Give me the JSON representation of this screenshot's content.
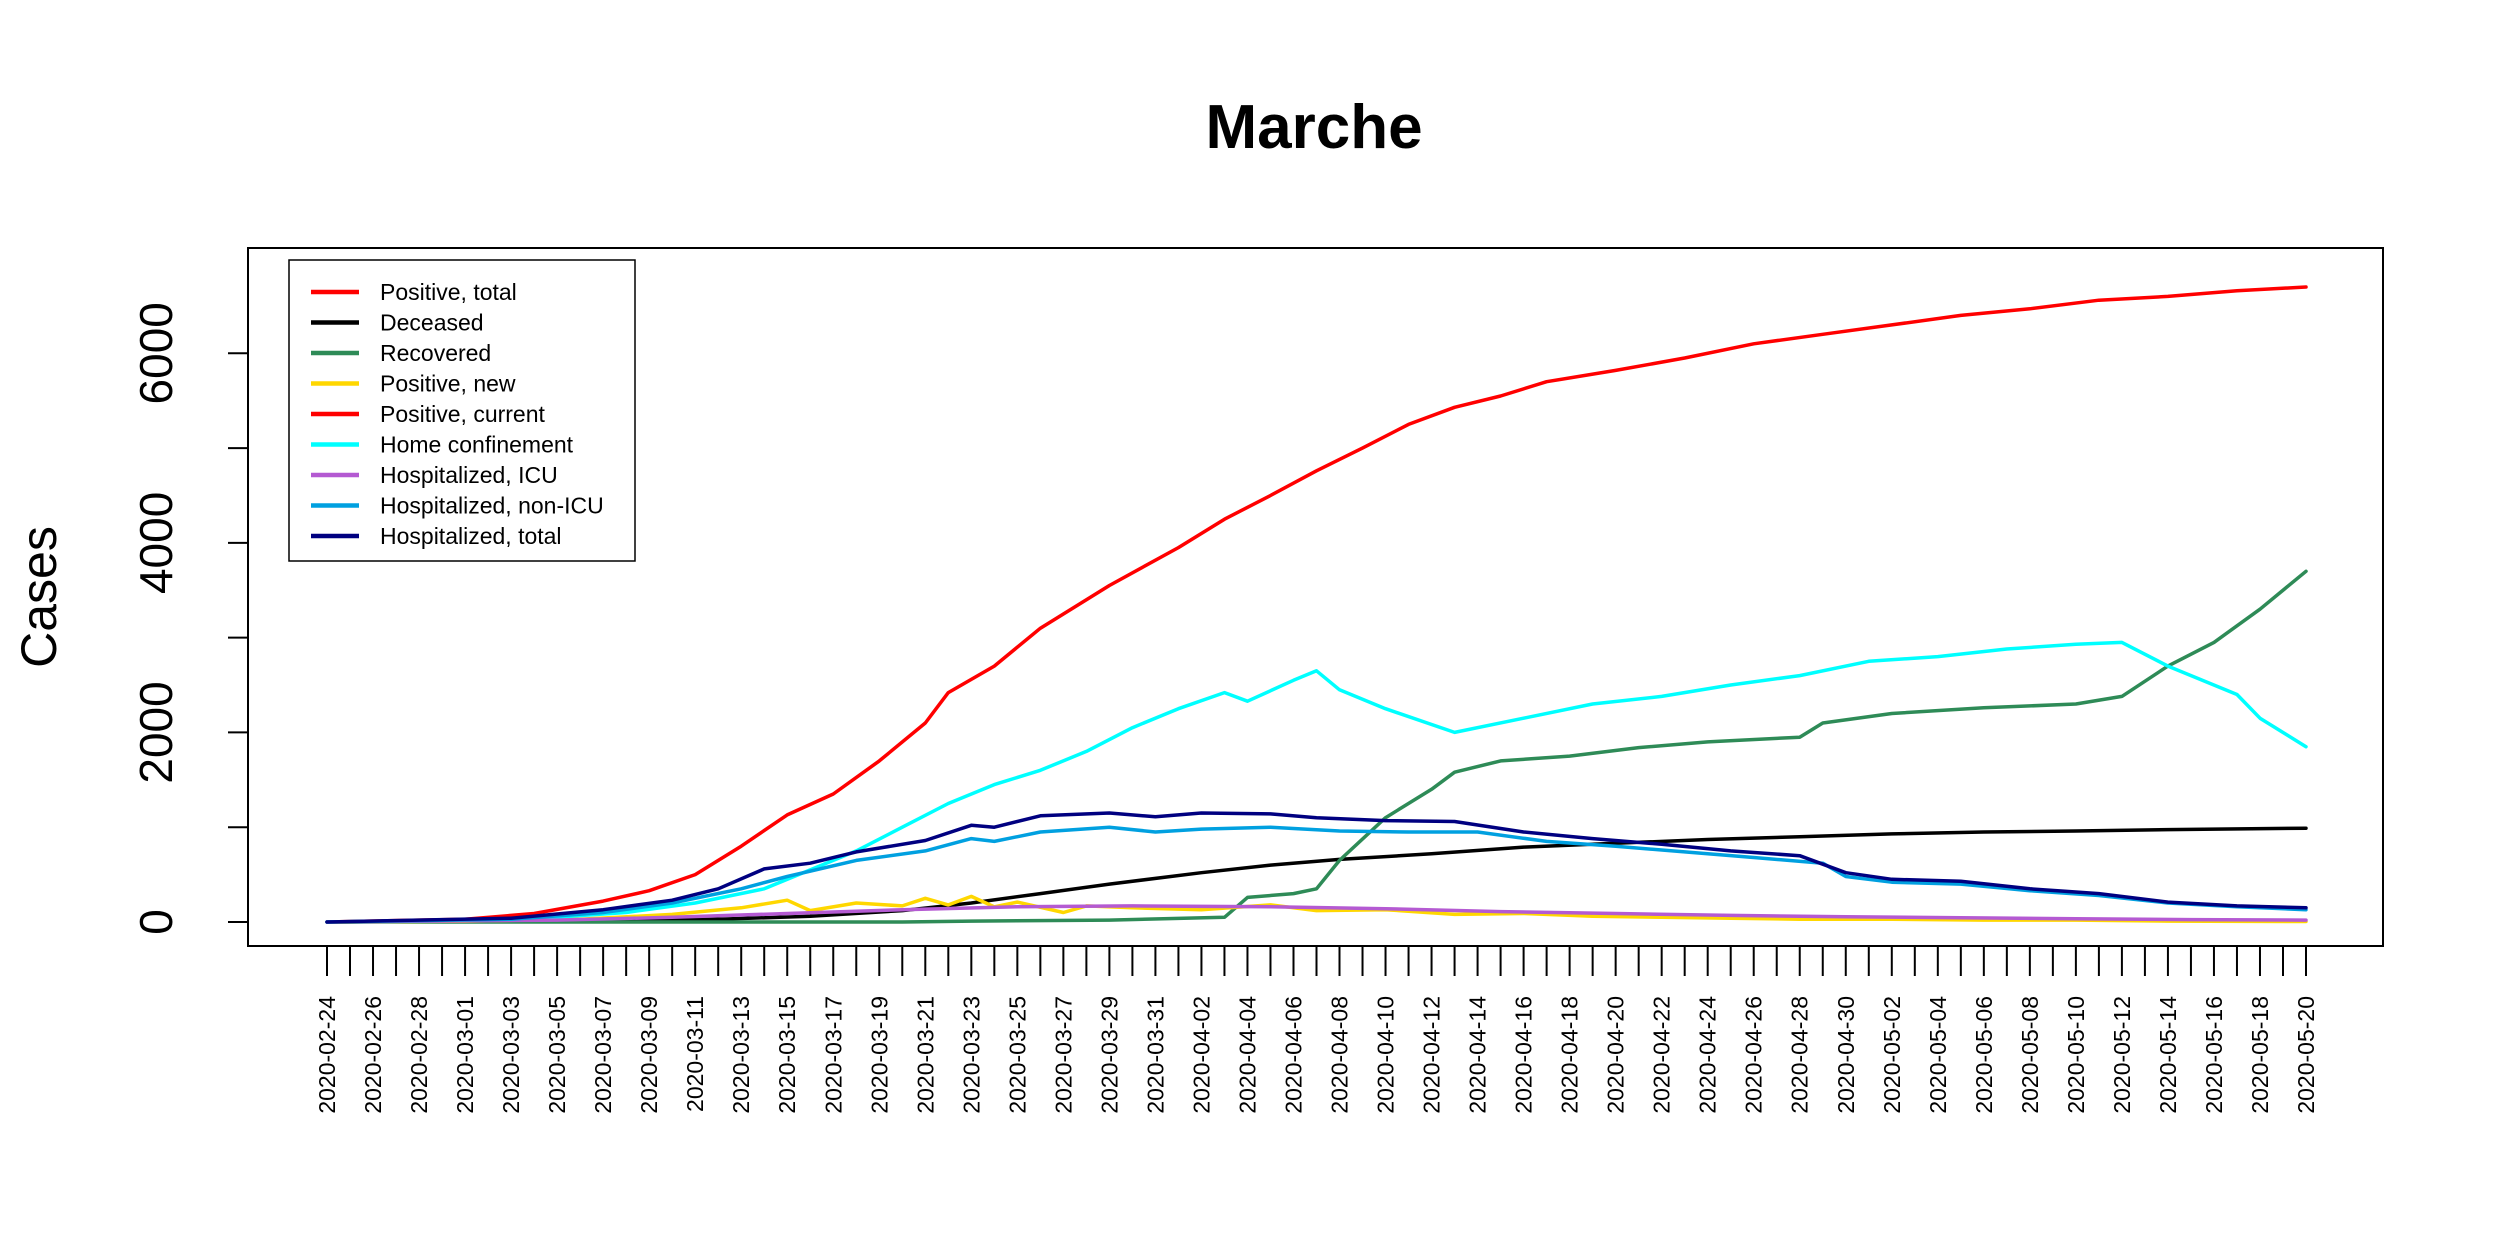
{
  "chart_data": {
    "type": "line",
    "title": "Marche",
    "xlabel": "",
    "ylabel": "Cases",
    "x_start": "2020-02-24",
    "x_end": "2020-05-20",
    "x_tick_labels": [
      "2020-02-24",
      "2020-02-26",
      "2020-02-28",
      "2020-03-01",
      "2020-03-03",
      "2020-03-05",
      "2020-03-07",
      "2020-03-09",
      "2020-03-11",
      "2020-03-13",
      "2020-03-15",
      "2020-03-17",
      "2020-03-19",
      "2020-03-21",
      "2020-03-23",
      "2020-03-25",
      "2020-03-27",
      "2020-03-29",
      "2020-03-31",
      "2020-04-02",
      "2020-04-04",
      "2020-04-06",
      "2020-04-08",
      "2020-04-10",
      "2020-04-12",
      "2020-04-14",
      "2020-04-16",
      "2020-04-18",
      "2020-04-20",
      "2020-04-22",
      "2020-04-24",
      "2020-04-26",
      "2020-04-28",
      "2020-04-30",
      "2020-05-02",
      "2020-05-04",
      "2020-05-06",
      "2020-05-08",
      "2020-05-10",
      "2020-05-12",
      "2020-05-14",
      "2020-05-16",
      "2020-05-18",
      "2020-05-20"
    ],
    "y_ticks": [
      0,
      2000,
      4000,
      6000
    ],
    "ylim": [
      0,
      6900
    ],
    "legend_position": "top-left",
    "grid": false,
    "series": [
      {
        "name": "Positive, total",
        "color": "#ff0000",
        "points": [
          [
            "2020-02-24",
            0
          ],
          [
            "2020-03-01",
            30
          ],
          [
            "2020-03-04",
            90
          ],
          [
            "2020-03-07",
            220
          ],
          [
            "2020-03-09",
            330
          ],
          [
            "2020-03-11",
            500
          ],
          [
            "2020-03-13",
            800
          ],
          [
            "2020-03-15",
            1130
          ],
          [
            "2020-03-17",
            1350
          ],
          [
            "2020-03-19",
            1700
          ],
          [
            "2020-03-21",
            2100
          ],
          [
            "2020-03-22",
            2420
          ],
          [
            "2020-03-24",
            2700
          ],
          [
            "2020-03-26",
            3100
          ],
          [
            "2020-03-29",
            3550
          ],
          [
            "2020-04-01",
            3950
          ],
          [
            "2020-04-03",
            4250
          ],
          [
            "2020-04-05",
            4500
          ],
          [
            "2020-04-07",
            4760
          ],
          [
            "2020-04-09",
            5000
          ],
          [
            "2020-04-11",
            5250
          ],
          [
            "2020-04-13",
            5430
          ],
          [
            "2020-04-15",
            5550
          ],
          [
            "2020-04-17",
            5700
          ],
          [
            "2020-04-20",
            5820
          ],
          [
            "2020-04-23",
            5950
          ],
          [
            "2020-04-26",
            6100
          ],
          [
            "2020-04-29",
            6200
          ],
          [
            "2020-05-02",
            6300
          ],
          [
            "2020-05-05",
            6400
          ],
          [
            "2020-05-08",
            6470
          ],
          [
            "2020-05-11",
            6560
          ],
          [
            "2020-05-14",
            6600
          ],
          [
            "2020-05-17",
            6660
          ],
          [
            "2020-05-20",
            6700
          ]
        ]
      },
      {
        "name": "Deceased",
        "color": "#000000",
        "points": [
          [
            "2020-02-24",
            0
          ],
          [
            "2020-03-06",
            10
          ],
          [
            "2020-03-12",
            30
          ],
          [
            "2020-03-16",
            60
          ],
          [
            "2020-03-20",
            120
          ],
          [
            "2020-03-23",
            200
          ],
          [
            "2020-03-26",
            300
          ],
          [
            "2020-03-29",
            400
          ],
          [
            "2020-04-02",
            520
          ],
          [
            "2020-04-05",
            600
          ],
          [
            "2020-04-08",
            660
          ],
          [
            "2020-04-12",
            720
          ],
          [
            "2020-04-16",
            790
          ],
          [
            "2020-04-20",
            830
          ],
          [
            "2020-04-24",
            870
          ],
          [
            "2020-04-28",
            900
          ],
          [
            "2020-05-02",
            930
          ],
          [
            "2020-05-06",
            950
          ],
          [
            "2020-05-10",
            960
          ],
          [
            "2020-05-14",
            975
          ],
          [
            "2020-05-20",
            990
          ]
        ]
      },
      {
        "name": "Recovered",
        "color": "#2e8b57",
        "points": [
          [
            "2020-02-24",
            0
          ],
          [
            "2020-03-20",
            0
          ],
          [
            "2020-03-23",
            10
          ],
          [
            "2020-03-29",
            20
          ],
          [
            "2020-04-03",
            50
          ],
          [
            "2020-04-04",
            260
          ],
          [
            "2020-04-06",
            300
          ],
          [
            "2020-04-07",
            350
          ],
          [
            "2020-04-08",
            650
          ],
          [
            "2020-04-10",
            1100
          ],
          [
            "2020-04-12",
            1400
          ],
          [
            "2020-04-13",
            1580
          ],
          [
            "2020-04-15",
            1700
          ],
          [
            "2020-04-18",
            1750
          ],
          [
            "2020-04-21",
            1840
          ],
          [
            "2020-04-24",
            1900
          ],
          [
            "2020-04-28",
            1950
          ],
          [
            "2020-04-29",
            2100
          ],
          [
            "2020-05-02",
            2200
          ],
          [
            "2020-05-06",
            2260
          ],
          [
            "2020-05-10",
            2300
          ],
          [
            "2020-05-12",
            2380
          ],
          [
            "2020-05-14",
            2700
          ],
          [
            "2020-05-16",
            2950
          ],
          [
            "2020-05-18",
            3300
          ],
          [
            "2020-05-20",
            3700
          ]
        ]
      },
      {
        "name": "Positive, new",
        "color": "#ffd700",
        "points": [
          [
            "2020-02-24",
            0
          ],
          [
            "2020-03-01",
            10
          ],
          [
            "2020-03-06",
            30
          ],
          [
            "2020-03-10",
            80
          ],
          [
            "2020-03-13",
            150
          ],
          [
            "2020-03-15",
            230
          ],
          [
            "2020-03-16",
            120
          ],
          [
            "2020-03-18",
            200
          ],
          [
            "2020-03-20",
            170
          ],
          [
            "2020-03-21",
            250
          ],
          [
            "2020-03-22",
            180
          ],
          [
            "2020-03-23",
            270
          ],
          [
            "2020-03-24",
            160
          ],
          [
            "2020-03-25",
            210
          ],
          [
            "2020-03-27",
            100
          ],
          [
            "2020-03-28",
            170
          ],
          [
            "2020-03-30",
            150
          ],
          [
            "2020-04-02",
            130
          ],
          [
            "2020-04-05",
            180
          ],
          [
            "2020-04-07",
            120
          ],
          [
            "2020-04-10",
            130
          ],
          [
            "2020-04-13",
            80
          ],
          [
            "2020-04-16",
            90
          ],
          [
            "2020-04-19",
            60
          ],
          [
            "2020-04-22",
            50
          ],
          [
            "2020-04-25",
            40
          ],
          [
            "2020-04-28",
            30
          ],
          [
            "2020-05-02",
            30
          ],
          [
            "2020-05-06",
            20
          ],
          [
            "2020-05-10",
            20
          ],
          [
            "2020-05-14",
            10
          ],
          [
            "2020-05-20",
            5
          ]
        ]
      },
      {
        "name": "Positive, current",
        "color": "#ff0000",
        "points": []
      },
      {
        "name": "Home confinement",
        "color": "#00ffff",
        "points": [
          [
            "2020-02-24",
            0
          ],
          [
            "2020-03-03",
            20
          ],
          [
            "2020-03-08",
            100
          ],
          [
            "2020-03-11",
            200
          ],
          [
            "2020-03-14",
            350
          ],
          [
            "2020-03-16",
            550
          ],
          [
            "2020-03-18",
            750
          ],
          [
            "2020-03-20",
            1000
          ],
          [
            "2020-03-22",
            1250
          ],
          [
            "2020-03-24",
            1450
          ],
          [
            "2020-03-26",
            1600
          ],
          [
            "2020-03-28",
            1800
          ],
          [
            "2020-03-30",
            2050
          ],
          [
            "2020-04-01",
            2250
          ],
          [
            "2020-04-03",
            2420
          ],
          [
            "2020-04-04",
            2330
          ],
          [
            "2020-04-06",
            2550
          ],
          [
            "2020-04-07",
            2650
          ],
          [
            "2020-04-08",
            2450
          ],
          [
            "2020-04-10",
            2250
          ],
          [
            "2020-04-13",
            2000
          ],
          [
            "2020-04-16",
            2150
          ],
          [
            "2020-04-19",
            2300
          ],
          [
            "2020-04-22",
            2380
          ],
          [
            "2020-04-25",
            2500
          ],
          [
            "2020-04-28",
            2600
          ],
          [
            "2020-05-01",
            2750
          ],
          [
            "2020-05-04",
            2800
          ],
          [
            "2020-05-07",
            2880
          ],
          [
            "2020-05-10",
            2930
          ],
          [
            "2020-05-12",
            2950
          ],
          [
            "2020-05-14",
            2700
          ],
          [
            "2020-05-17",
            2400
          ],
          [
            "2020-05-18",
            2150
          ],
          [
            "2020-05-20",
            1850
          ]
        ]
      },
      {
        "name": "Hospitalized, ICU",
        "color": "#b45ad2",
        "points": [
          [
            "2020-02-24",
            0
          ],
          [
            "2020-03-05",
            20
          ],
          [
            "2020-03-10",
            50
          ],
          [
            "2020-03-15",
            90
          ],
          [
            "2020-03-20",
            130
          ],
          [
            "2020-03-25",
            160
          ],
          [
            "2020-03-30",
            170
          ],
          [
            "2020-04-05",
            160
          ],
          [
            "2020-04-10",
            140
          ],
          [
            "2020-04-15",
            110
          ],
          [
            "2020-04-20",
            90
          ],
          [
            "2020-04-25",
            70
          ],
          [
            "2020-04-30",
            55
          ],
          [
            "2020-05-05",
            45
          ],
          [
            "2020-05-10",
            35
          ],
          [
            "2020-05-15",
            25
          ],
          [
            "2020-05-20",
            20
          ]
        ]
      },
      {
        "name": "Hospitalized, non-ICU",
        "color": "#00a0e0",
        "points": [
          [
            "2020-02-24",
            0
          ],
          [
            "2020-03-03",
            30
          ],
          [
            "2020-03-07",
            100
          ],
          [
            "2020-03-10",
            200
          ],
          [
            "2020-03-13",
            350
          ],
          [
            "2020-03-15",
            480
          ],
          [
            "2020-03-18",
            650
          ],
          [
            "2020-03-21",
            750
          ],
          [
            "2020-03-23",
            880
          ],
          [
            "2020-03-24",
            850
          ],
          [
            "2020-03-26",
            950
          ],
          [
            "2020-03-29",
            1000
          ],
          [
            "2020-03-31",
            950
          ],
          [
            "2020-04-02",
            980
          ],
          [
            "2020-04-05",
            1000
          ],
          [
            "2020-04-08",
            960
          ],
          [
            "2020-04-11",
            950
          ],
          [
            "2020-04-14",
            950
          ],
          [
            "2020-04-17",
            850
          ],
          [
            "2020-04-20",
            800
          ],
          [
            "2020-04-23",
            740
          ],
          [
            "2020-04-26",
            680
          ],
          [
            "2020-04-29",
            620
          ],
          [
            "2020-04-30",
            480
          ],
          [
            "2020-05-02",
            420
          ],
          [
            "2020-05-05",
            400
          ],
          [
            "2020-05-08",
            330
          ],
          [
            "2020-05-11",
            280
          ],
          [
            "2020-05-14",
            200
          ],
          [
            "2020-05-17",
            160
          ],
          [
            "2020-05-20",
            130
          ]
        ]
      },
      {
        "name": "Hospitalized, total",
        "color": "#000080",
        "points": [
          [
            "2020-02-24",
            0
          ],
          [
            "2020-03-03",
            40
          ],
          [
            "2020-03-07",
            130
          ],
          [
            "2020-03-10",
            230
          ],
          [
            "2020-03-12",
            350
          ],
          [
            "2020-03-14",
            560
          ],
          [
            "2020-03-16",
            620
          ],
          [
            "2020-03-18",
            740
          ],
          [
            "2020-03-21",
            860
          ],
          [
            "2020-03-23",
            1020
          ],
          [
            "2020-03-24",
            1000
          ],
          [
            "2020-03-26",
            1120
          ],
          [
            "2020-03-29",
            1150
          ],
          [
            "2020-03-31",
            1110
          ],
          [
            "2020-04-02",
            1150
          ],
          [
            "2020-04-05",
            1140
          ],
          [
            "2020-04-07",
            1100
          ],
          [
            "2020-04-10",
            1070
          ],
          [
            "2020-04-13",
            1060
          ],
          [
            "2020-04-16",
            950
          ],
          [
            "2020-04-19",
            880
          ],
          [
            "2020-04-22",
            820
          ],
          [
            "2020-04-25",
            750
          ],
          [
            "2020-04-28",
            700
          ],
          [
            "2020-04-30",
            520
          ],
          [
            "2020-05-02",
            450
          ],
          [
            "2020-05-05",
            430
          ],
          [
            "2020-05-08",
            350
          ],
          [
            "2020-05-11",
            300
          ],
          [
            "2020-05-14",
            210
          ],
          [
            "2020-05-17",
            170
          ],
          [
            "2020-05-20",
            150
          ]
        ]
      }
    ]
  }
}
